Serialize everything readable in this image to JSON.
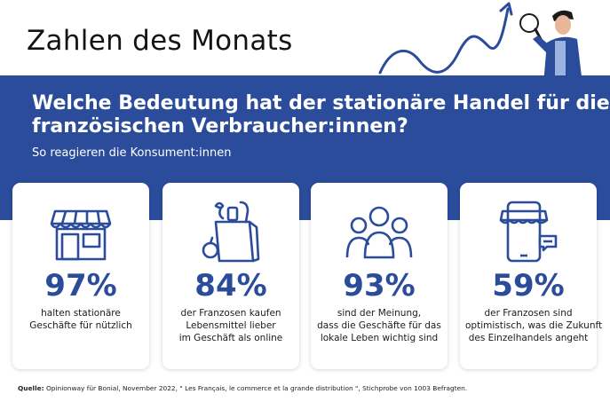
{
  "header": {
    "title": "Zahlen des Monats"
  },
  "banner": {
    "question_lines": [
      "Welche Bedeutung hat der stationäre Handel für die",
      "französischen Verbraucher:innen?"
    ],
    "subtitle": "So reagieren die Konsument:innen"
  },
  "cards": [
    {
      "icon": "storefront-icon",
      "percent": "97%",
      "lines": [
        "halten stationäre",
        "Geschäfte für nützlich"
      ]
    },
    {
      "icon": "grocery-bag-icon",
      "percent": "84%",
      "lines": [
        "der Franzosen kaufen",
        "Lebensmittel lieber",
        "im Geschäft als online"
      ]
    },
    {
      "icon": "people-group-icon",
      "percent": "93%",
      "lines": [
        "sind der Meinung,",
        "dass die Geschäfte für das",
        "lokale Leben wichtig sind"
      ]
    },
    {
      "icon": "mobile-shop-icon",
      "percent": "59%",
      "lines": [
        "der Franzosen sind",
        "optimistisch, was die Zukunft",
        "des Einzelhandels angeht"
      ]
    }
  ],
  "source": {
    "label": "Quelle:",
    "text": " Opinionway für Bonial, November 2022, \" Les Français, le commerce et la grande distribution \", Stichprobe von 1003 Befragten."
  },
  "colors": {
    "primary": "#2b4c9b",
    "text": "#1b1b1b",
    "background": "#ffffff"
  }
}
